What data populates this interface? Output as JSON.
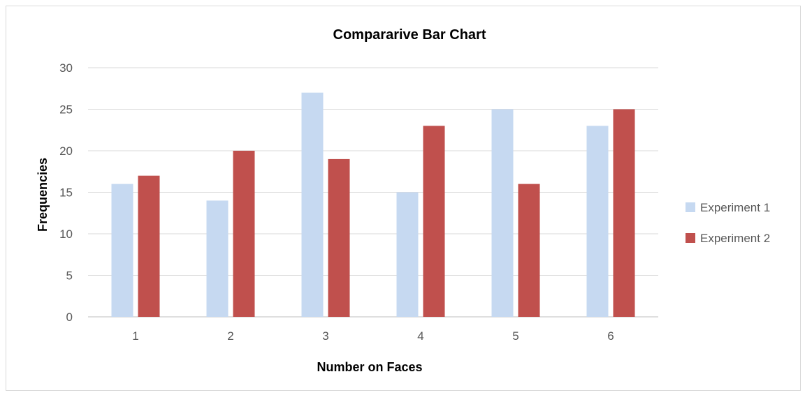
{
  "chart_data": {
    "type": "bar",
    "title": "Compararive Bar Chart",
    "xlabel": "Number on Faces",
    "ylabel": "Frequencies",
    "categories": [
      "1",
      "2",
      "3",
      "4",
      "5",
      "6"
    ],
    "series": [
      {
        "name": "Experiment 1",
        "values": [
          16,
          14,
          27,
          15,
          25,
          23
        ],
        "color": "#c6d9f1"
      },
      {
        "name": "Experiment 2",
        "values": [
          17,
          20,
          19,
          23,
          16,
          25
        ],
        "color": "#c0504d"
      }
    ],
    "ylim": [
      0,
      30
    ],
    "yticks": [
      0,
      5,
      10,
      15,
      20,
      25,
      30
    ],
    "grid": true,
    "legend_position": "right"
  }
}
